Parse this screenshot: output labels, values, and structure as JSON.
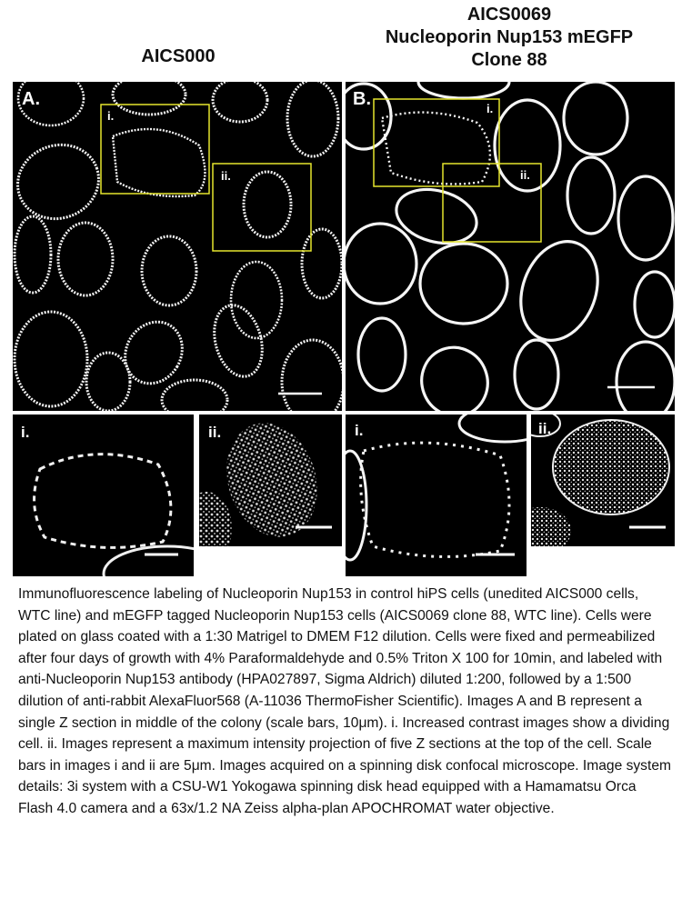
{
  "titles": {
    "a": "AICS000",
    "b_line1": "AICS0069",
    "b_line2": "Nucleoporin Nup153 mEGFP",
    "b_line3": "Clone 88"
  },
  "panels": {
    "A": {
      "label": "A.",
      "box1": "i.",
      "box2": "ii."
    },
    "B": {
      "label": "B.",
      "box1": "i.",
      "box2": "ii."
    },
    "A_i": {
      "label": "i."
    },
    "A_ii": {
      "label": "ii."
    },
    "B_i": {
      "label": "i."
    },
    "B_ii": {
      "label": "ii."
    }
  },
  "colors": {
    "highlight_box": "#e6e62e",
    "signal": "#ffffff",
    "background": "#000000"
  },
  "caption": "Immunofluorescence labeling of Nucleoporin Nup153 in control hiPS cells (unedited AICS000 cells, WTC line) and mEGFP tagged Nucleoporin Nup153 cells (AICS0069 clone 88, WTC line).  Cells were plated on glass coated with a 1:30 Matrigel to DMEM F12 dilution. Cells were fixed and permeabilized after four days of growth with 4% Paraformaldehyde and 0.5% Triton X 100 for 10min, and labeled with anti-Nucleoporin Nup153 antibody (HPA027897, Sigma Aldrich) diluted 1:200, followed by a 1:500 dilution of anti-rabbit AlexaFluor568 (A-11036 ThermoFisher Scientific).  Images A and B represent a single Z section in middle of the colony (scale bars, 10μm). i. Increased contrast images show a dividing cell. ii. Images represent a maximum intensity projection of five Z sections at the top of the cell. Scale bars in images i and ii are 5μm. Images acquired on a spinning disk confocal microscope.  Image system details: 3i system with a CSU-W1 Yokogawa spinning disk head equipped with a Hamamatsu Orca Flash 4.0 camera and a 63x/1.2 NA Zeiss alpha-plan APOCHROMAT water objective."
}
